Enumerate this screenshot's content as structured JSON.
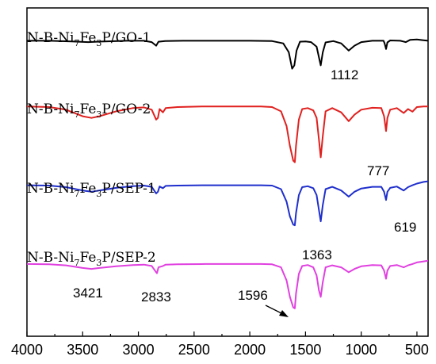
{
  "chart_data": {
    "type": "line",
    "title": "",
    "xlabel": "",
    "ylabel": "",
    "xlim": [
      4000,
      400
    ],
    "x_reversed": true,
    "x_ticks": [
      4000,
      3500,
      3000,
      2500,
      2000,
      1500,
      1000,
      500
    ],
    "y_ticks_shown": false,
    "grid": false,
    "legend": "none",
    "series": [
      {
        "name_parts": [
          "N-B-Ni",
          "7",
          "Fe",
          "3",
          "P/GO-1"
        ],
        "color": "#000000",
        "baseline": 0.1,
        "points": [
          [
            4000,
            0.1
          ],
          [
            3800,
            0.1
          ],
          [
            3600,
            0.102
          ],
          [
            3450,
            0.104
          ],
          [
            3300,
            0.102
          ],
          [
            3100,
            0.1
          ],
          [
            2950,
            0.1
          ],
          [
            2880,
            0.104
          ],
          [
            2840,
            0.115
          ],
          [
            2820,
            0.103
          ],
          [
            2760,
            0.101
          ],
          [
            2600,
            0.1
          ],
          [
            2300,
            0.1
          ],
          [
            2000,
            0.1
          ],
          [
            1800,
            0.101
          ],
          [
            1700,
            0.108
          ],
          [
            1650,
            0.135
          ],
          [
            1620,
            0.185
          ],
          [
            1600,
            0.175
          ],
          [
            1580,
            0.13
          ],
          [
            1550,
            0.103
          ],
          [
            1500,
            0.102
          ],
          [
            1450,
            0.104
          ],
          [
            1400,
            0.118
          ],
          [
            1380,
            0.15
          ],
          [
            1363,
            0.175
          ],
          [
            1345,
            0.135
          ],
          [
            1320,
            0.105
          ],
          [
            1250,
            0.101
          ],
          [
            1180,
            0.108
          ],
          [
            1112,
            0.13
          ],
          [
            1060,
            0.115
          ],
          [
            1000,
            0.104
          ],
          [
            900,
            0.1
          ],
          [
            800,
            0.1
          ],
          [
            790,
            0.108
          ],
          [
            777,
            0.125
          ],
          [
            765,
            0.105
          ],
          [
            740,
            0.099
          ],
          [
            650,
            0.1
          ],
          [
            600,
            0.104
          ],
          [
            560,
            0.097
          ],
          [
            500,
            0.096
          ],
          [
            450,
            0.098
          ],
          [
            400,
            0.1
          ]
        ]
      },
      {
        "name_parts": [
          "N-B-Ni",
          "7",
          "Fe",
          "3",
          "P/GO-2"
        ],
        "color": "#e0211f",
        "baseline": 0.3,
        "points": [
          [
            4000,
            0.3
          ],
          [
            3800,
            0.302
          ],
          [
            3650,
            0.31
          ],
          [
            3500,
            0.33
          ],
          [
            3421,
            0.335
          ],
          [
            3350,
            0.33
          ],
          [
            3200,
            0.315
          ],
          [
            3050,
            0.305
          ],
          [
            2950,
            0.303
          ],
          [
            2880,
            0.31
          ],
          [
            2840,
            0.34
          ],
          [
            2825,
            0.335
          ],
          [
            2810,
            0.308
          ],
          [
            2780,
            0.318
          ],
          [
            2755,
            0.305
          ],
          [
            2650,
            0.302
          ],
          [
            2400,
            0.3
          ],
          [
            2100,
            0.3
          ],
          [
            1900,
            0.3
          ],
          [
            1800,
            0.302
          ],
          [
            1720,
            0.315
          ],
          [
            1670,
            0.36
          ],
          [
            1640,
            0.42
          ],
          [
            1610,
            0.465
          ],
          [
            1596,
            0.47
          ],
          [
            1585,
            0.42
          ],
          [
            1560,
            0.34
          ],
          [
            1530,
            0.308
          ],
          [
            1480,
            0.305
          ],
          [
            1430,
            0.312
          ],
          [
            1400,
            0.335
          ],
          [
            1380,
            0.4
          ],
          [
            1363,
            0.455
          ],
          [
            1345,
            0.39
          ],
          [
            1320,
            0.315
          ],
          [
            1260,
            0.305
          ],
          [
            1180,
            0.318
          ],
          [
            1112,
            0.345
          ],
          [
            1060,
            0.325
          ],
          [
            1000,
            0.31
          ],
          [
            900,
            0.304
          ],
          [
            820,
            0.305
          ],
          [
            795,
            0.33
          ],
          [
            777,
            0.375
          ],
          [
            765,
            0.335
          ],
          [
            740,
            0.31
          ],
          [
            680,
            0.305
          ],
          [
            619,
            0.32
          ],
          [
            580,
            0.308
          ],
          [
            540,
            0.316
          ],
          [
            500,
            0.302
          ],
          [
            440,
            0.3
          ],
          [
            400,
            0.3
          ]
        ]
      },
      {
        "name_parts": [
          "N-B-Ni",
          "7",
          "Fe",
          "3",
          "P/SEP-1"
        ],
        "color": "#1f2fcc",
        "baseline": 0.54,
        "points": [
          [
            4000,
            0.54
          ],
          [
            3800,
            0.541
          ],
          [
            3650,
            0.546
          ],
          [
            3500,
            0.556
          ],
          [
            3421,
            0.56
          ],
          [
            3350,
            0.556
          ],
          [
            3200,
            0.548
          ],
          [
            3050,
            0.543
          ],
          [
            2950,
            0.541
          ],
          [
            2880,
            0.545
          ],
          [
            2840,
            0.565
          ],
          [
            2825,
            0.56
          ],
          [
            2810,
            0.544
          ],
          [
            2780,
            0.549
          ],
          [
            2755,
            0.542
          ],
          [
            2650,
            0.541
          ],
          [
            2400,
            0.54
          ],
          [
            2100,
            0.54
          ],
          [
            1900,
            0.54
          ],
          [
            1800,
            0.541
          ],
          [
            1720,
            0.552
          ],
          [
            1670,
            0.59
          ],
          [
            1640,
            0.635
          ],
          [
            1610,
            0.66
          ],
          [
            1596,
            0.662
          ],
          [
            1585,
            0.625
          ],
          [
            1560,
            0.57
          ],
          [
            1530,
            0.546
          ],
          [
            1480,
            0.543
          ],
          [
            1430,
            0.549
          ],
          [
            1400,
            0.57
          ],
          [
            1380,
            0.615
          ],
          [
            1363,
            0.65
          ],
          [
            1345,
            0.6
          ],
          [
            1320,
            0.552
          ],
          [
            1260,
            0.545
          ],
          [
            1180,
            0.556
          ],
          [
            1112,
            0.575
          ],
          [
            1060,
            0.56
          ],
          [
            1000,
            0.55
          ],
          [
            900,
            0.545
          ],
          [
            820,
            0.545
          ],
          [
            795,
            0.56
          ],
          [
            777,
            0.585
          ],
          [
            765,
            0.56
          ],
          [
            740,
            0.548
          ],
          [
            680,
            0.544
          ],
          [
            619,
            0.556
          ],
          [
            580,
            0.546
          ],
          [
            540,
            0.54
          ],
          [
            500,
            0.535
          ],
          [
            440,
            0.53
          ],
          [
            400,
            0.528
          ]
        ]
      },
      {
        "name_parts": [
          "N-B-Ni",
          "7",
          "Fe",
          "3",
          "P/SEP-2"
        ],
        "color": "#e040e0",
        "baseline": 0.78,
        "points": [
          [
            4000,
            0.78
          ],
          [
            3800,
            0.781
          ],
          [
            3650,
            0.784
          ],
          [
            3500,
            0.792
          ],
          [
            3421,
            0.795
          ],
          [
            3350,
            0.792
          ],
          [
            3200,
            0.787
          ],
          [
            3050,
            0.783
          ],
          [
            2950,
            0.782
          ],
          [
            2880,
            0.786
          ],
          [
            2840,
            0.805
          ],
          [
            2833,
            0.808
          ],
          [
            2820,
            0.79
          ],
          [
            2780,
            0.786
          ],
          [
            2755,
            0.782
          ],
          [
            2650,
            0.781
          ],
          [
            2400,
            0.78
          ],
          [
            2100,
            0.78
          ],
          [
            1900,
            0.78
          ],
          [
            1800,
            0.781
          ],
          [
            1720,
            0.79
          ],
          [
            1670,
            0.83
          ],
          [
            1640,
            0.88
          ],
          [
            1610,
            0.912
          ],
          [
            1596,
            0.915
          ],
          [
            1585,
            0.87
          ],
          [
            1560,
            0.81
          ],
          [
            1530,
            0.786
          ],
          [
            1480,
            0.783
          ],
          [
            1430,
            0.79
          ],
          [
            1400,
            0.815
          ],
          [
            1380,
            0.86
          ],
          [
            1363,
            0.88
          ],
          [
            1345,
            0.835
          ],
          [
            1320,
            0.79
          ],
          [
            1260,
            0.784
          ],
          [
            1180,
            0.79
          ],
          [
            1112,
            0.805
          ],
          [
            1060,
            0.795
          ],
          [
            1000,
            0.787
          ],
          [
            900,
            0.783
          ],
          [
            820,
            0.784
          ],
          [
            795,
            0.8
          ],
          [
            777,
            0.825
          ],
          [
            765,
            0.8
          ],
          [
            740,
            0.786
          ],
          [
            680,
            0.783
          ],
          [
            619,
            0.79
          ],
          [
            580,
            0.784
          ],
          [
            540,
            0.78
          ],
          [
            500,
            0.775
          ],
          [
            440,
            0.772
          ],
          [
            400,
            0.77
          ]
        ]
      }
    ],
    "annotations": [
      {
        "text": "1112",
        "x": 1112
      },
      {
        "text": "777",
        "x": 777
      },
      {
        "text": "619",
        "x": 619
      },
      {
        "text": "1363",
        "x": 1363
      },
      {
        "text": "3421",
        "x": 3421
      },
      {
        "text": "2833",
        "x": 2833
      },
      {
        "text": "1596",
        "x": 1596,
        "arrow": true
      }
    ]
  }
}
